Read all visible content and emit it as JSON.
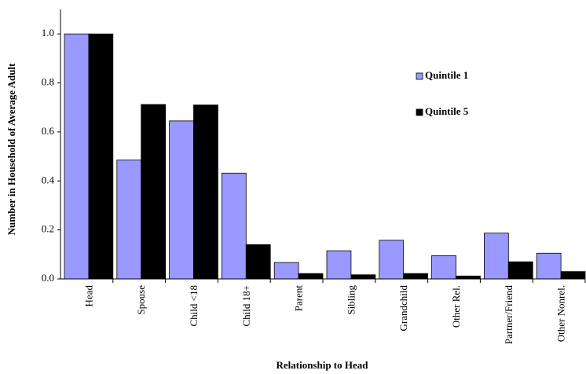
{
  "chart_data": {
    "type": "bar",
    "x_label": "Relationship to Head",
    "y_label": "Number in Household of Average Adult",
    "categories": [
      "Head",
      "Spouse",
      "Child <18",
      "Child 18+",
      "Parent",
      "Sibling",
      "Grandchild",
      "Other Rel.",
      "Partner/Friend",
      "Other Nonrel."
    ],
    "series": [
      {
        "name": "Quintile 1",
        "color": "#9999ff",
        "values": [
          1.0,
          0.485,
          0.645,
          0.432,
          0.067,
          0.115,
          0.158,
          0.095,
          0.187,
          0.105
        ]
      },
      {
        "name": "Quintile 5",
        "color": "#000000",
        "values": [
          1.0,
          0.712,
          0.71,
          0.14,
          0.022,
          0.017,
          0.022,
          0.012,
          0.07,
          0.03
        ]
      }
    ],
    "ylim": [
      0,
      1.1
    ],
    "yticks": [
      {
        "value": 0,
        "label": "0.0"
      },
      0.2,
      0.4,
      0.6,
      0.8,
      {
        "value": 1,
        "label": "1.0"
      }
    ],
    "grid": false,
    "legend": "right"
  }
}
